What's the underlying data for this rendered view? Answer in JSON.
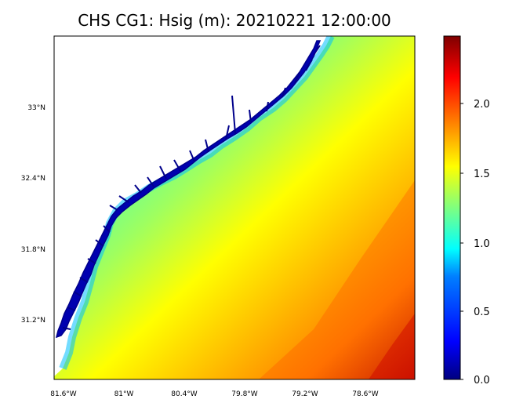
{
  "figure": {
    "title": "CHS CG1: Hsig (m): 20210221 12:00:00"
  },
  "map": {
    "x_ticks": [
      "81.6°W",
      "81°W",
      "80.4°W",
      "79.8°W",
      "79.2°W",
      "78.6°W"
    ],
    "y_ticks": [
      "33°N",
      "32.4°N",
      "31.8°N",
      "31.2°N"
    ]
  },
  "colorbar": {
    "ticks": [
      "0.0",
      "0.5",
      "1.0",
      "1.5",
      "2.0"
    ],
    "colors": [
      "#00007f",
      "#0000ff",
      "#007fff",
      "#00ffff",
      "#7fff7f",
      "#ffff00",
      "#ff7f00",
      "#ff0000",
      "#7f0000"
    ]
  },
  "chart_data": {
    "type": "heatmap",
    "title": "CHS CG1: Hsig (m): 20210221 12:00:00",
    "x_ticks": [
      "81.6°W",
      "81°W",
      "80.4°W",
      "79.8°W",
      "79.2°W",
      "78.6°W"
    ],
    "y_ticks": [
      "33°N",
      "32.4°N",
      "31.8°N",
      "31.2°N"
    ],
    "colorbar_ticks": [
      0.0,
      0.5,
      1.0,
      1.5,
      2.0
    ],
    "colorbar_range": [
      0.0,
      2.45
    ]
  }
}
